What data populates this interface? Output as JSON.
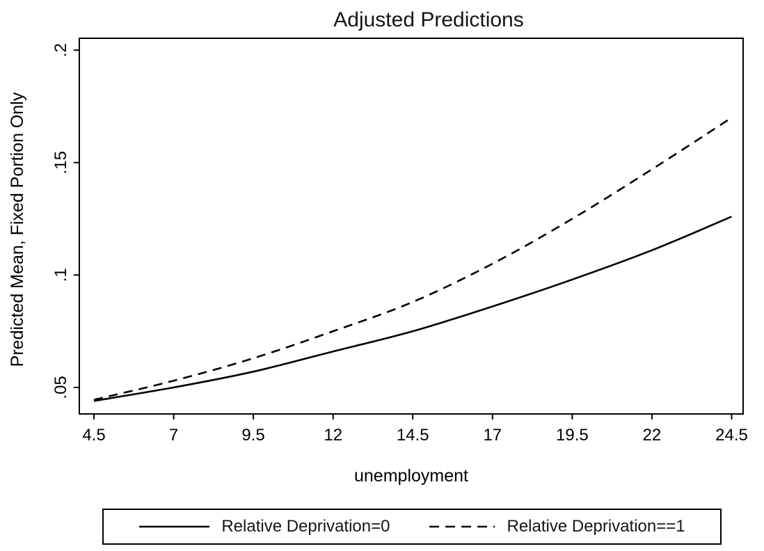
{
  "chart_data": {
    "type": "line",
    "title": "Adjusted Predictions",
    "xlabel": "unemployment",
    "ylabel": "Predicted Mean, Fixed Portion Only",
    "x": [
      4.5,
      7,
      9.5,
      12,
      14.5,
      17,
      19.5,
      22,
      24.5
    ],
    "x_tick_labels": [
      "4.5",
      "7",
      "9.5",
      "12",
      "14.5",
      "17",
      "19.5",
      "22",
      "24.5"
    ],
    "y_ticks": [
      {
        "value": 0.05,
        "label": ".05"
      },
      {
        "value": 0.1,
        "label": ".1"
      },
      {
        "value": 0.15,
        "label": ".15"
      },
      {
        "value": 0.2,
        "label": ".2"
      }
    ],
    "xlim": [
      4.042,
      24.86
    ],
    "ylim": [
      0.0382,
      0.2053
    ],
    "grid": false,
    "legend_position": "bottom",
    "series": [
      {
        "name": "Relative Deprivation=0",
        "line_style": "solid",
        "color": "#000000",
        "values": [
          0.044,
          0.05,
          0.057,
          0.066,
          0.075,
          0.086,
          0.098,
          0.111,
          0.126
        ]
      },
      {
        "name": "Relative Deprivation==1",
        "line_style": "dashed",
        "color": "#000000",
        "values": [
          0.0445,
          0.053,
          0.063,
          0.075,
          0.088,
          0.105,
          0.125,
          0.147,
          0.17
        ]
      }
    ]
  },
  "colors": {
    "line": "#000000",
    "text": "#161616",
    "background": "#ffffff"
  }
}
